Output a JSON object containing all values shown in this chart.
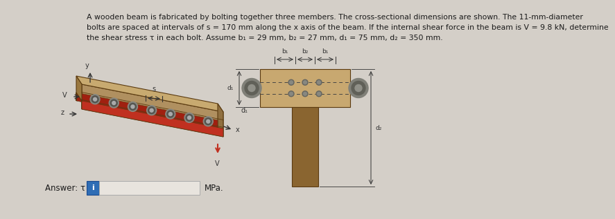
{
  "background_color": "#d4cfc8",
  "text_problem": "A wooden beam is fabricated by bolting together three members. The cross-sectional dimensions are shown. The 11-mm-diameter\nbolts are spaced at intervals of s = 170 mm along the x axis of the beam. If the internal shear force in the beam is V = 9.8 kN, determine\nthe shear stress τ in each bolt. Assume b₁ = 29 mm, b₂ = 27 mm, d₁ = 75 mm, d₂ = 350 mm.",
  "answer_label": "Answer: τ =",
  "answer_unit": "MPa.",
  "answer_box_color": "#2f6db5",
  "answer_box_text": "i",
  "text_color": "#1a1a1a",
  "font_size_problem": 7.8,
  "font_size_answer": 8.5,
  "beam_top_color": "#b09055",
  "beam_front_color": "#8a7045",
  "beam_end_color": "#9a8050",
  "beam_dark_color": "#6a5530",
  "red_strip_color": "#c03020",
  "flange_light": "#c8a870",
  "flange_dark": "#a07840",
  "web_color": "#8a6530"
}
